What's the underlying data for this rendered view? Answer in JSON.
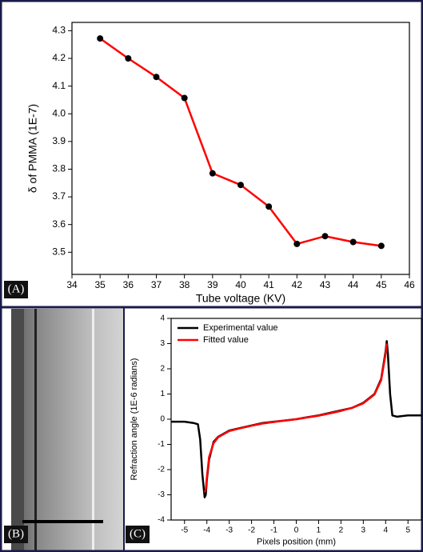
{
  "chart_data": [
    {
      "type": "line",
      "x_label": "Tube voltage (KV)",
      "y_label": "δ of PMMA (1E-7)",
      "x": [
        35,
        36,
        37,
        38,
        39,
        40,
        41,
        42,
        43,
        44,
        45
      ],
      "series": [
        {
          "color": "#ff0000",
          "marker_color": "#000000",
          "values": [
            4.272,
            4.2,
            4.133,
            4.057,
            3.785,
            3.743,
            3.665,
            3.53,
            3.558,
            3.537,
            3.523
          ]
        }
      ],
      "xlim": [
        34,
        46
      ],
      "xticks": [
        34,
        35,
        36,
        37,
        38,
        39,
        40,
        41,
        42,
        43,
        44,
        45,
        46
      ],
      "ylim": [
        3.42,
        4.33
      ],
      "yticks": [
        3.5,
        3.6,
        3.7,
        3.8,
        3.9,
        {
          "value": 4,
          "label": "4.0"
        },
        4.1,
        4.2,
        4.3
      ]
    },
    {
      "type": "line",
      "x_label": "Pixels position (mm)",
      "y_label": "Refraction angle (1E-6 radians)",
      "x": [
        -5.6,
        -5.0,
        -4.6,
        -4.4,
        -4.3,
        -4.2,
        -4.1,
        -4.05,
        -4.0,
        -3.9,
        -3.7,
        -3.5,
        -3.0,
        -2.5,
        -2.0,
        -1.5,
        -1.0,
        -0.5,
        0,
        0.5,
        1.0,
        1.5,
        2.0,
        2.5,
        3.0,
        3.5,
        3.8,
        4.0,
        4.05,
        4.1,
        4.2,
        4.3,
        4.5,
        5.0,
        5.6
      ],
      "series": [
        {
          "name": "Experimental value",
          "color": "#000000",
          "values": [
            -0.1,
            -0.1,
            -0.15,
            -0.2,
            -0.8,
            -2.2,
            -3.1,
            -3.0,
            -2.4,
            -1.6,
            -0.9,
            -0.7,
            -0.45,
            -0.35,
            -0.25,
            -0.15,
            -0.1,
            -0.05,
            0.0,
            0.08,
            0.15,
            0.25,
            0.35,
            0.45,
            0.65,
            1.0,
            1.6,
            2.7,
            3.1,
            2.6,
            1.0,
            0.15,
            0.1,
            0.15,
            0.15
          ]
        },
        {
          "name": "Fitted value",
          "color": "#ff0000",
          "values": [
            null,
            null,
            null,
            null,
            null,
            null,
            -2.9,
            -2.8,
            -2.3,
            -1.5,
            -0.95,
            -0.72,
            -0.47,
            -0.36,
            -0.26,
            -0.17,
            -0.11,
            -0.05,
            0,
            0.07,
            0.14,
            0.23,
            0.33,
            0.45,
            0.63,
            0.98,
            1.55,
            2.6,
            3.0,
            null,
            null,
            null,
            null,
            null,
            null
          ]
        }
      ],
      "legend": "top-left",
      "xlim": [
        -5.6,
        5.6
      ],
      "xticks": [
        -5,
        -4,
        -3,
        -2,
        -1,
        0,
        1,
        2,
        3,
        4,
        5
      ],
      "ylim": [
        -4,
        4
      ],
      "yticks": [
        -4,
        -3,
        -2,
        -1,
        0,
        1,
        2,
        3,
        4
      ]
    }
  ],
  "panel_labels": [
    "(A)",
    "(B)",
    "(C)"
  ]
}
